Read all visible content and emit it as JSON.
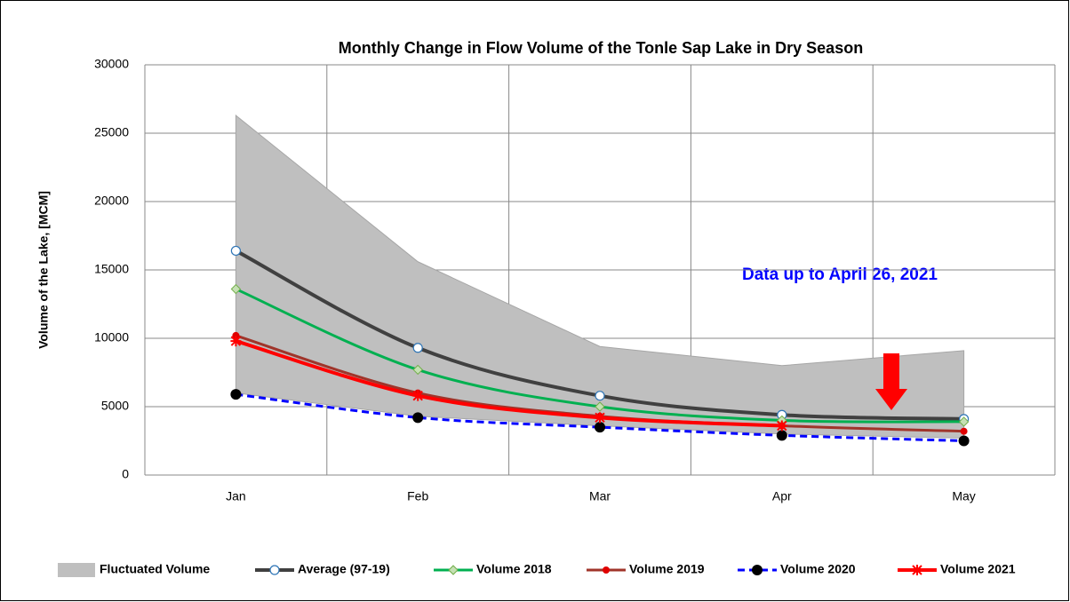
{
  "chart_data": {
    "type": "line",
    "title": "Monthly Change in Flow Volume of the Tonle Sap Lake in Dry Season",
    "y_label": "Volume of the Lake, [MCM]",
    "annotation": "Data up to April 26, 2021",
    "categories": [
      "Jan",
      "Feb",
      "Mar",
      "Apr",
      "May"
    ],
    "ylim": [
      0,
      30000
    ],
    "yticks": [
      0,
      5000,
      10000,
      15000,
      20000,
      25000,
      30000
    ],
    "grid": true,
    "legend": "bottom",
    "band": {
      "name": "Fluctuated Volume",
      "color": "#bfbfbf",
      "max": [
        26300,
        15600,
        9400,
        8000,
        9100
      ],
      "min": [
        6000,
        4300,
        3600,
        3000,
        2700
      ]
    },
    "series": [
      {
        "name": "Average (97-19)",
        "color": "#404040",
        "marker": "open-circle",
        "values": [
          16400,
          9300,
          5800,
          4400,
          4100
        ]
      },
      {
        "name": "Volume 2018",
        "color": "#00b050",
        "marker": "diamond",
        "values": [
          13600,
          7700,
          5000,
          4000,
          3900
        ]
      },
      {
        "name": "Volume 2019",
        "color": "#a0342a",
        "marker": "dot",
        "values": [
          10200,
          6000,
          4300,
          3600,
          3200
        ]
      },
      {
        "name": "Volume 2020",
        "color": "#0000ff",
        "marker": "black-circle",
        "dashed": true,
        "values": [
          5900,
          4200,
          3500,
          2900,
          2500
        ]
      },
      {
        "name": "Volume 2021",
        "color": "#ff0000",
        "marker": "star",
        "values": [
          9800,
          5800,
          4200,
          3600,
          null
        ]
      }
    ]
  }
}
